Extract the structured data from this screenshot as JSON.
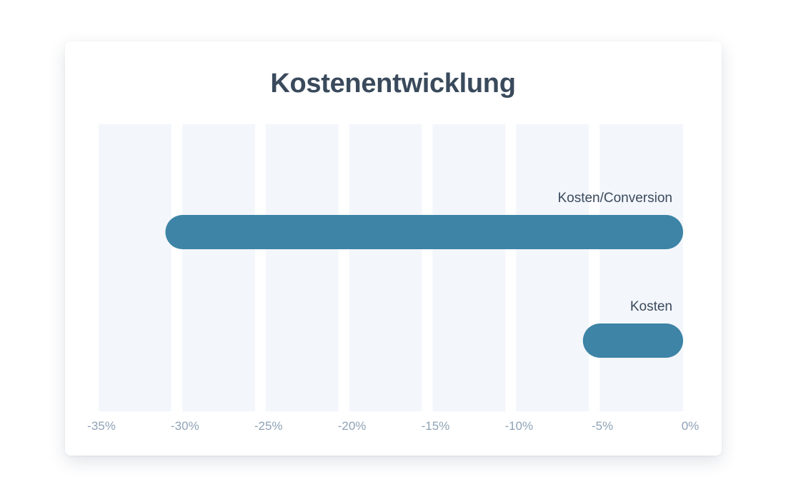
{
  "chart_data": {
    "type": "bar",
    "orientation": "horizontal",
    "title": "Kostenentwicklung",
    "categories": [
      "Kosten/Conversion",
      "Kosten"
    ],
    "values": [
      -31,
      -6
    ],
    "xlabel": "",
    "ylabel": "",
    "xlim": [
      -35,
      0
    ],
    "x_ticks": [
      -35,
      -30,
      -25,
      -20,
      -15,
      -10,
      -5,
      0
    ],
    "tick_labels": [
      "-35%",
      "-30%",
      "-25%",
      "-20%",
      "-15%",
      "-10%",
      "-5%",
      "0%"
    ],
    "grid": "alternating vertical bands",
    "legend": "none",
    "bar_color": "#3d84a6",
    "band_color": "#f3f6fb",
    "text_color": "#3a4a5c",
    "tick_color": "#8fa2b5"
  }
}
